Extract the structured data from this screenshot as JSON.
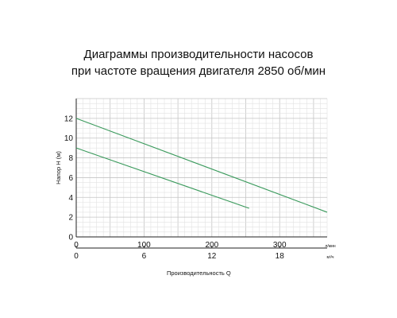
{
  "chart_data": {
    "type": "line",
    "title": "Диаграммы производительности насосов",
    "subtitle": "при частоте вращения двигателя 2850 об/мин",
    "ylabel": "Напор H (м)",
    "xlabel": "Производительность   Q",
    "x_unit": "л/мин",
    "x2_unit": "м³/ч",
    "ylim": [
      0,
      14
    ],
    "xlim": [
      0,
      370
    ],
    "x_ticks": [
      0,
      100,
      200,
      300
    ],
    "y_ticks": [
      0,
      2,
      4,
      6,
      8,
      10,
      12
    ],
    "x2_ticks": [
      0,
      6,
      12,
      18
    ],
    "grid": true,
    "series": [
      {
        "x": [
          0,
          370
        ],
        "y": [
          12.0,
          2.5
        ],
        "color": "#3a9a5c"
      },
      {
        "x": [
          0,
          255
        ],
        "y": [
          9.0,
          2.9
        ],
        "color": "#3a9a5c"
      }
    ]
  }
}
